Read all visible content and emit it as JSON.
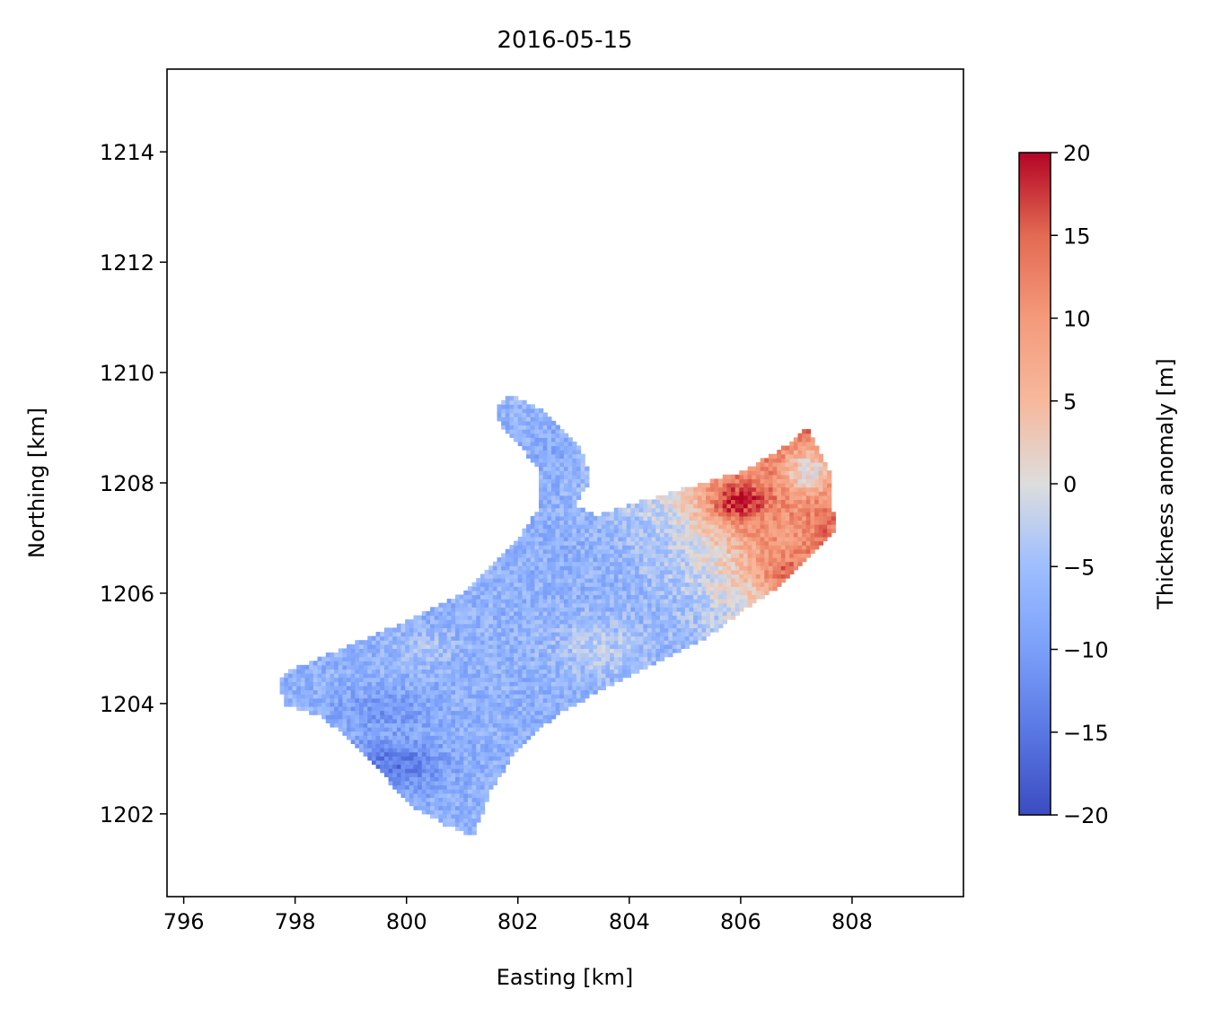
{
  "chart_data": {
    "type": "heatmap",
    "title": "2016-05-15",
    "xlabel": "Easting [km]",
    "ylabel": "Northing [km]",
    "xlim": [
      795.7,
      810.0
    ],
    "ylim": [
      1200.5,
      1215.5
    ],
    "xticks": [
      796,
      798,
      800,
      802,
      804,
      806,
      808
    ],
    "yticks": [
      1202,
      1204,
      1206,
      1208,
      1210,
      1212,
      1214
    ],
    "grid": false,
    "colorbar": {
      "label": "Thickness anomaly [m]",
      "colormap": "coolwarm",
      "vmin": -20,
      "vmax": 20,
      "ticks": [
        -20,
        -15,
        -10,
        -5,
        0,
        5,
        10,
        15,
        20
      ],
      "tick_labels": [
        "−20",
        "−15",
        "−10",
        "−5",
        "0",
        "5",
        "10",
        "15",
        "20"
      ]
    },
    "colors": {
      "low": "#3b4cc0",
      "mid": "#dddddd",
      "high": "#b40426"
    },
    "outline": [
      [
        797.7,
        1204.4
      ],
      [
        797.9,
        1204.6
      ],
      [
        800.0,
        1205.5
      ],
      [
        801.0,
        1206.0
      ],
      [
        801.5,
        1206.5
      ],
      [
        802.0,
        1207.0
      ],
      [
        802.4,
        1207.6
      ],
      [
        802.4,
        1208.2
      ],
      [
        802.1,
        1208.6
      ],
      [
        801.7,
        1209.0
      ],
      [
        801.6,
        1209.4
      ],
      [
        801.8,
        1209.6
      ],
      [
        802.1,
        1209.5
      ],
      [
        802.5,
        1209.3
      ],
      [
        802.9,
        1208.9
      ],
      [
        803.2,
        1208.5
      ],
      [
        803.3,
        1208.0
      ],
      [
        803.0,
        1207.6
      ],
      [
        803.4,
        1207.4
      ],
      [
        804.0,
        1207.6
      ],
      [
        805.0,
        1207.9
      ],
      [
        806.0,
        1208.2
      ],
      [
        806.7,
        1208.6
      ],
      [
        807.2,
        1209.0
      ],
      [
        807.6,
        1208.2
      ],
      [
        807.7,
        1207.1
      ],
      [
        806.8,
        1206.2
      ],
      [
        806.2,
        1205.8
      ],
      [
        805.4,
        1205.2
      ],
      [
        804.6,
        1204.8
      ],
      [
        803.6,
        1204.3
      ],
      [
        802.7,
        1203.8
      ],
      [
        802.0,
        1203.2
      ],
      [
        801.5,
        1202.4
      ],
      [
        801.2,
        1201.6
      ],
      [
        800.7,
        1201.8
      ],
      [
        800.0,
        1202.2
      ],
      [
        799.6,
        1202.7
      ],
      [
        799.2,
        1203.1
      ],
      [
        798.8,
        1203.5
      ],
      [
        798.4,
        1203.8
      ],
      [
        797.8,
        1204.0
      ]
    ],
    "anomaly_features": [
      {
        "type": "uniform",
        "value": -7
      },
      {
        "type": "gradient",
        "from": [
          804.0,
          1205.5
        ],
        "to": [
          807.2,
          1207.5
        ],
        "value_from": -5,
        "value_to": 14
      },
      {
        "type": "blob",
        "center": [
          806.0,
          1207.65
        ],
        "radius": [
          0.6,
          0.4
        ],
        "value": 20
      },
      {
        "type": "blob",
        "center": [
          806.9,
          1206.4
        ],
        "radius": [
          0.5,
          0.35
        ],
        "value": 15
      },
      {
        "type": "blob",
        "center": [
          806.7,
          1207.1
        ],
        "radius": [
          0.6,
          0.5
        ],
        "value": 10
      },
      {
        "type": "blob",
        "center": [
          807.2,
          1208.2
        ],
        "radius": [
          0.5,
          0.5
        ],
        "value": 0
      },
      {
        "type": "blob",
        "center": [
          799.8,
          1202.9
        ],
        "radius": [
          0.9,
          0.5
        ],
        "value": -15
      },
      {
        "type": "blob",
        "center": [
          799.6,
          1203.9
        ],
        "radius": [
          0.9,
          0.4
        ],
        "value": -11
      },
      {
        "type": "blob",
        "center": [
          803.5,
          1205.0
        ],
        "radius": [
          0.9,
          0.6
        ],
        "value": -3
      },
      {
        "type": "blob",
        "center": [
          800.3,
          1205.0
        ],
        "radius": [
          0.6,
          0.3
        ],
        "value": -4
      },
      {
        "type": "blob",
        "center": [
          802.6,
          1208.6
        ],
        "radius": [
          0.5,
          0.6
        ],
        "value": -8
      }
    ]
  }
}
